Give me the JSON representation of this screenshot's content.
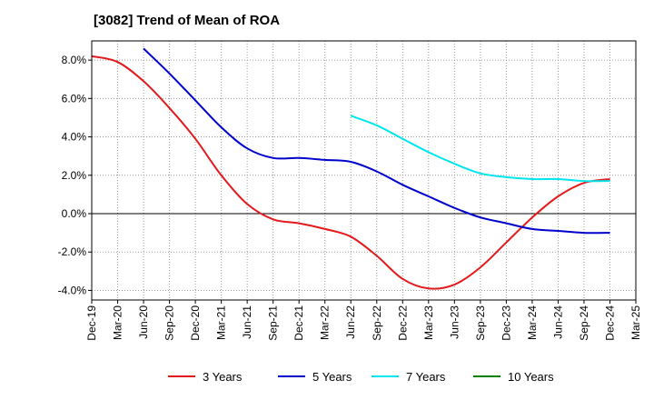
{
  "chart_data": {
    "type": "line",
    "title": "[3082]  Trend of Mean of ROA",
    "xlabel": "",
    "ylabel": "",
    "ylim": [
      -4.5,
      9.0
    ],
    "yticks": [
      8.0,
      6.0,
      4.0,
      2.0,
      0.0,
      -2.0,
      -4.0
    ],
    "ytick_labels": [
      "8.0%",
      "6.0%",
      "4.0%",
      "2.0%",
      "0.0%",
      "-2.0%",
      "-4.0%"
    ],
    "categories": [
      "Dec-19",
      "Mar-20",
      "Jun-20",
      "Sep-20",
      "Dec-20",
      "Mar-21",
      "Jun-21",
      "Sep-21",
      "Dec-21",
      "Mar-22",
      "Jun-22",
      "Sep-22",
      "Dec-22",
      "Mar-23",
      "Jun-23",
      "Sep-23",
      "Dec-23",
      "Mar-24",
      "Jun-24",
      "Sep-24",
      "Dec-24",
      "Mar-25"
    ],
    "grid": true,
    "legend_position": "bottom",
    "series": [
      {
        "name": "3 Years",
        "color": "#e31a1c",
        "values": [
          8.2,
          7.9,
          6.9,
          5.5,
          3.9,
          2.0,
          0.5,
          -0.3,
          -0.5,
          -0.8,
          -1.2,
          -2.2,
          -3.4,
          -3.9,
          -3.7,
          -2.8,
          -1.5,
          -0.2,
          0.9,
          1.6,
          1.8,
          null
        ]
      },
      {
        "name": "5 Years",
        "color": "#0000cc",
        "values": [
          null,
          null,
          8.6,
          7.3,
          5.9,
          4.5,
          3.4,
          2.9,
          2.9,
          2.8,
          2.7,
          2.2,
          1.5,
          0.9,
          0.3,
          -0.2,
          -0.5,
          -0.8,
          -0.9,
          -1.0,
          -1.0,
          null
        ]
      },
      {
        "name": "7 Years",
        "color": "#00e5ee",
        "values": [
          null,
          null,
          null,
          null,
          null,
          null,
          null,
          null,
          null,
          null,
          5.1,
          4.6,
          3.9,
          3.2,
          2.6,
          2.1,
          1.9,
          1.8,
          1.8,
          1.7,
          1.7,
          null
        ]
      },
      {
        "name": "10 Years",
        "color": "#008000",
        "values": [
          null,
          null,
          null,
          null,
          null,
          null,
          null,
          null,
          null,
          null,
          null,
          null,
          null,
          null,
          null,
          null,
          null,
          null,
          null,
          null,
          null,
          null
        ]
      }
    ]
  }
}
